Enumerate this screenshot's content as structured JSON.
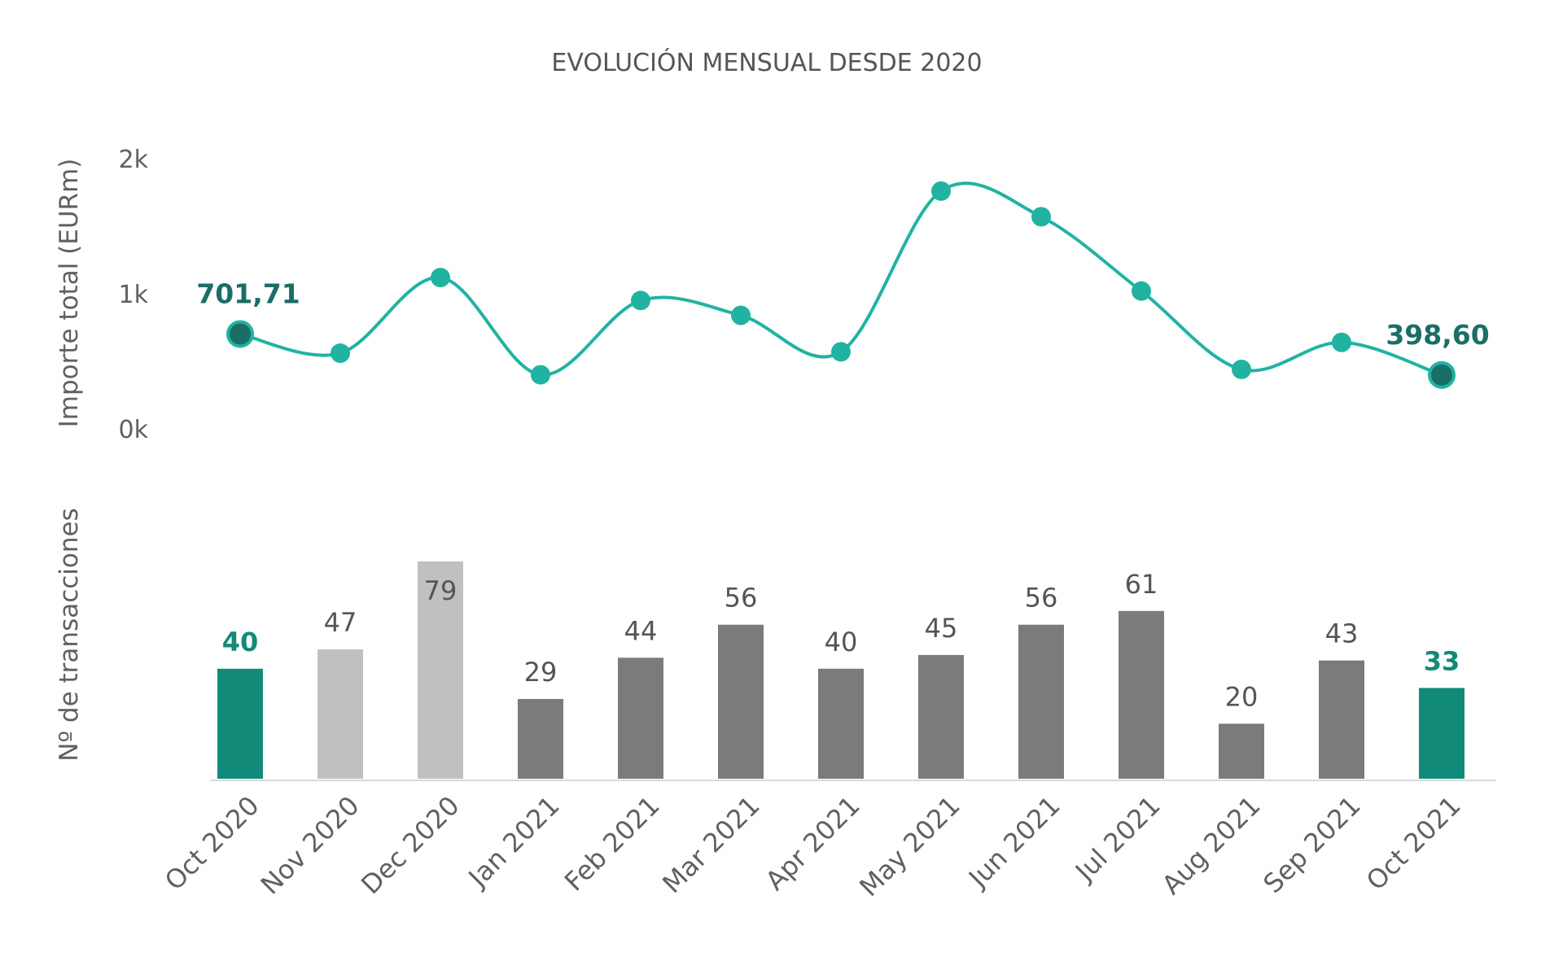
{
  "chart_data": [
    {
      "type": "line",
      "title": "EVOLUCIÓN MENSUAL DESDE 2020",
      "ylabel": "Importe total (EURm)",
      "yticks": [
        "0k",
        "1k",
        "2k"
      ],
      "ylim": [
        0,
        2000
      ],
      "smooth": true,
      "grid": false,
      "categories": [
        "Oct 2020",
        "Nov 2020",
        "Dec 2020",
        "Jan 2021",
        "Feb 2021",
        "Mar 2021",
        "Apr 2021",
        "May 2021",
        "Jun 2021",
        "Jul 2021",
        "Aug 2021",
        "Sep 2021",
        "Oct 2021"
      ],
      "values": [
        701.71,
        560,
        1120,
        400,
        950,
        840,
        570,
        1760,
        1570,
        1020,
        440,
        640,
        398.6
      ],
      "endpoint_labels": [
        {
          "index": 0,
          "text": "701,71"
        },
        {
          "index": 12,
          "text": "398,60"
        }
      ],
      "line_color": "#21B3A1",
      "endpoint_color": "#1A6E66"
    },
    {
      "type": "bar",
      "ylabel": "Nº de transacciones",
      "categories": [
        "Oct 2020",
        "Nov 2020",
        "Dec 2020",
        "Jan 2021",
        "Feb 2021",
        "Mar 2021",
        "Apr 2021",
        "May 2021",
        "Jun 2021",
        "Jul 2021",
        "Aug 2021",
        "Sep 2021",
        "Oct 2021"
      ],
      "values": [
        40,
        47,
        79,
        29,
        44,
        56,
        40,
        45,
        56,
        61,
        20,
        43,
        33
      ],
      "value_labels": [
        "40",
        "47",
        "79",
        "29",
        "44",
        "56",
        "40",
        "45",
        "56",
        "61",
        "20",
        "43",
        "33"
      ],
      "bar_colors": [
        "#128A7A",
        "#C0C0C0",
        "#C0C0C0",
        "#7B7B7B",
        "#7B7B7B",
        "#7B7B7B",
        "#7B7B7B",
        "#7B7B7B",
        "#7B7B7B",
        "#7B7B7B",
        "#7B7B7B",
        "#7B7B7B",
        "#128A7A"
      ],
      "highlighted": [
        0,
        12
      ],
      "label_highlight_color": "#128A7A",
      "grid": false
    }
  ]
}
